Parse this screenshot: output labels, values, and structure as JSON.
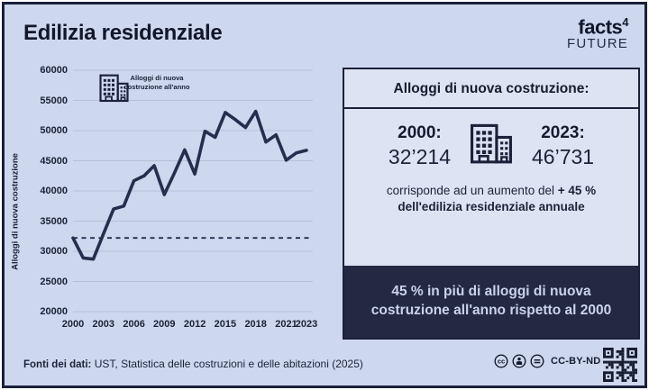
{
  "title": "Edilizia residenziale",
  "logo": {
    "brand": "facts",
    "sup": "4",
    "sub": "FUTURE"
  },
  "chart_data": {
    "type": "line",
    "title": "",
    "xlabel": "",
    "ylabel": "Alloggi di nuova costruzione",
    "series_label": "Alloggi di nuova costruzione all'anno",
    "annotation": [
      "Alloggi di nuova",
      "costruzione all'anno"
    ],
    "x": [
      2000,
      2001,
      2002,
      2003,
      2004,
      2005,
      2006,
      2007,
      2008,
      2009,
      2010,
      2011,
      2012,
      2013,
      2014,
      2015,
      2016,
      2017,
      2018,
      2019,
      2020,
      2021,
      2022,
      2023
    ],
    "values": [
      32214,
      28900,
      28700,
      32900,
      37000,
      37500,
      41700,
      42500,
      44200,
      39400,
      43000,
      46800,
      42800,
      49900,
      48900,
      53000,
      51800,
      50500,
      53200,
      48100,
      49300,
      45100,
      46300,
      46731
    ],
    "xticks": [
      2000,
      2003,
      2006,
      2009,
      2012,
      2015,
      2018,
      2021,
      2023
    ],
    "ylim": [
      20000,
      60000
    ],
    "ytick_step": 5000,
    "baseline_value": 32214,
    "baseline_style": "dashed",
    "grid": "horizontal",
    "legend": "none",
    "line_color": "#262e4e"
  },
  "panel": {
    "header": "Alloggi di nuova costruzione:",
    "stat_left": {
      "label": "2000:",
      "value": "32’214"
    },
    "stat_right": {
      "label": "2023:",
      "value": "46’731"
    },
    "note_regular": "corrisponde ad un aumento del",
    "note_bold": "+ 45 % dell'edilizia residenziale annuale",
    "highlight": "45 % in più di alloggi di nuova costruzione all'anno rispetto al 2000"
  },
  "footer": {
    "sources_label": "Fonti dei dati:",
    "sources_text": "UST, Statistica delle costruzioni e delle abitazioni (2025)",
    "license": "CC-BY-ND 4.0"
  },
  "colors": {
    "background": "#cdd8ee",
    "panel_body": "#dce3f3",
    "dark_navy": "#222941",
    "border": "#1b2138",
    "gridline": "#b6c0d7",
    "light_text_on_dark": "#c9d3eb"
  }
}
